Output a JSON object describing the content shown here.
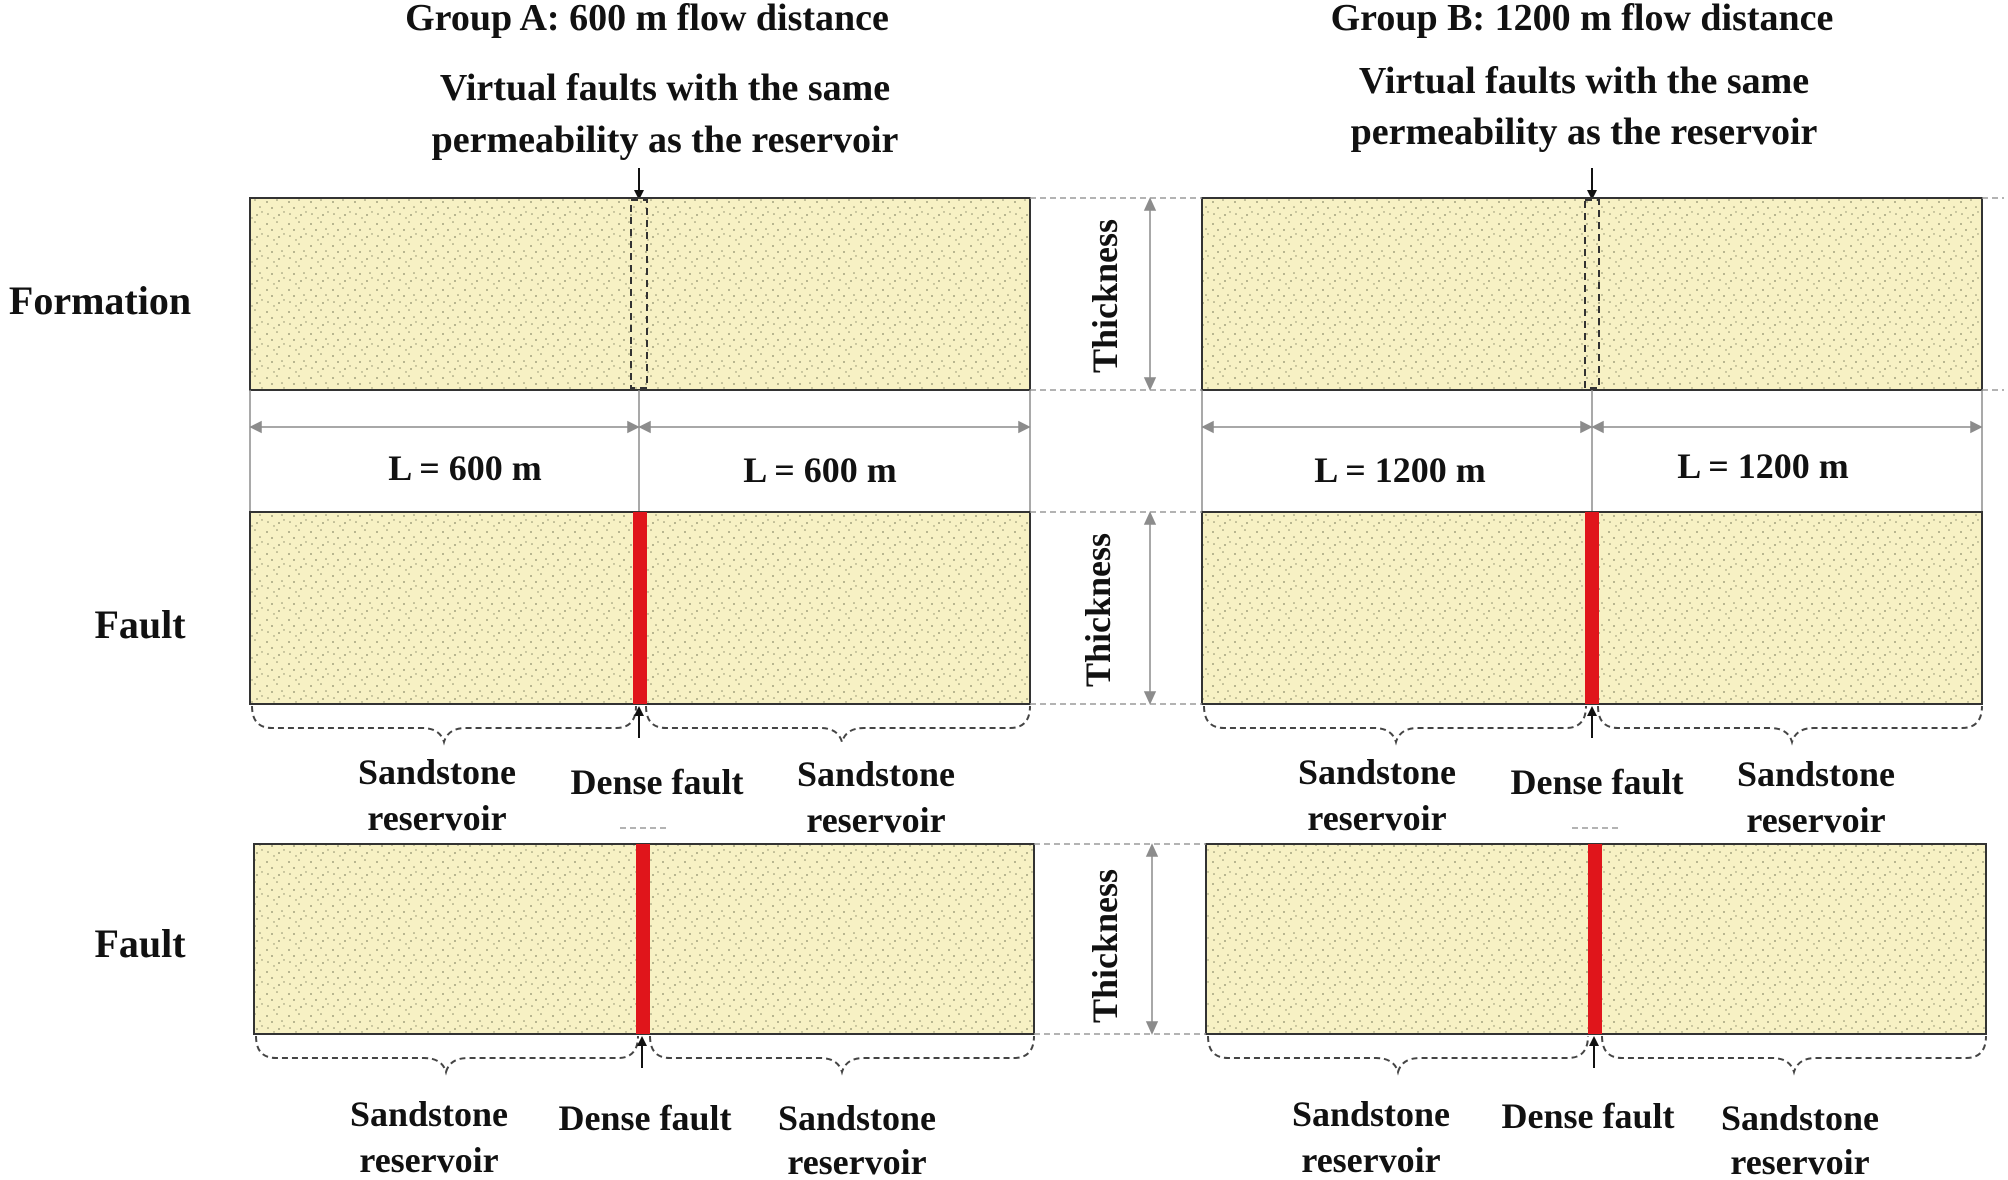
{
  "colors": {
    "sand": "#f7f1c4",
    "speckle": "#8a8a6a",
    "fault": "#e0151b",
    "dim_line": "#8c8c8c",
    "text": "#111111"
  },
  "row_labels": {
    "formation": "Formation",
    "fault_1": "Fault",
    "fault_2": "Fault"
  },
  "groups": {
    "a": {
      "title": "Group A: 600 m flow distance",
      "virtual_fault_line1": "Virtual faults with the same",
      "virtual_fault_line2": "permeability as the reservoir",
      "length_left": "L = 600 m",
      "length_right": "L = 600 m"
    },
    "b": {
      "title": "Group B: 1200 m flow distance",
      "virtual_fault_line1": "Virtual faults with the same",
      "virtual_fault_line2": "permeability as the reservoir",
      "length_left": "L = 1200 m",
      "length_right": "L = 1200 m"
    }
  },
  "thickness_label": "Thickness",
  "sandstone_line1": "Sandstone",
  "sandstone_line2": "reservoir",
  "dense_fault_label": "Dense fault"
}
